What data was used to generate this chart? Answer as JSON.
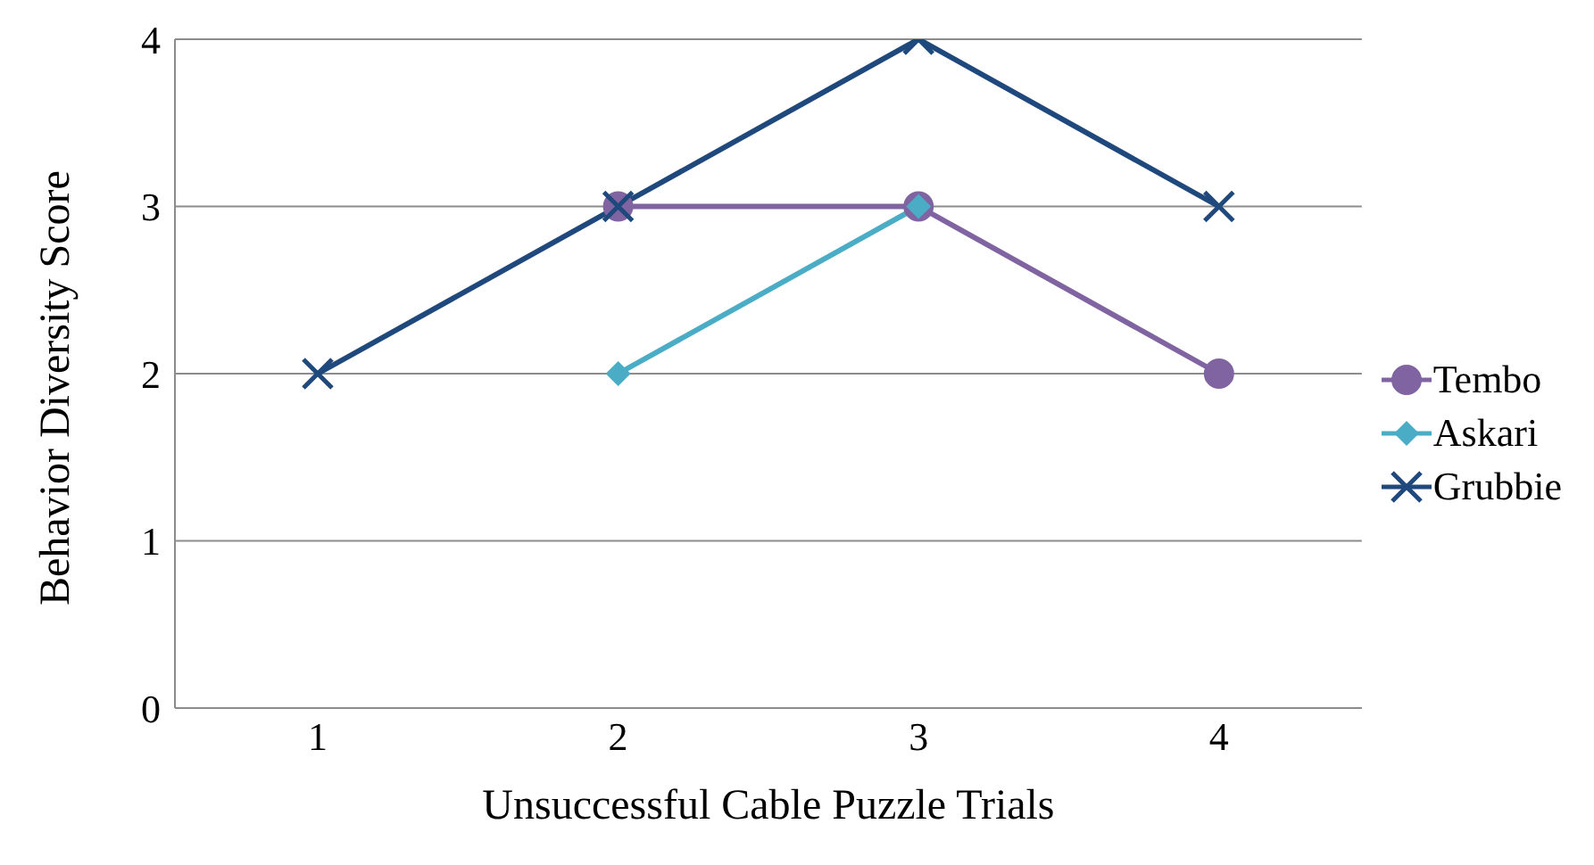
{
  "chart_data": {
    "type": "line",
    "xlabel": "Unsuccessful Cable Puzzle Trials",
    "ylabel": "Behavior Diversity Score",
    "categories": [
      "1",
      "2",
      "3",
      "4"
    ],
    "series": [
      {
        "name": "Tembo",
        "color": "#8064a2",
        "marker": "circle",
        "values": [
          null,
          3,
          3,
          2
        ]
      },
      {
        "name": "Askari",
        "color": "#4bacc6",
        "marker": "diamond",
        "values": [
          null,
          2,
          3,
          null
        ]
      },
      {
        "name": "Grubbie",
        "color": "#1f497d",
        "marker": "cross",
        "values": [
          2,
          3,
          4,
          3
        ]
      }
    ],
    "ylim": [
      0,
      4
    ],
    "yticks": [
      0,
      1,
      2,
      3,
      4
    ],
    "grid": "y",
    "legend": "right",
    "line_style": "solid"
  }
}
